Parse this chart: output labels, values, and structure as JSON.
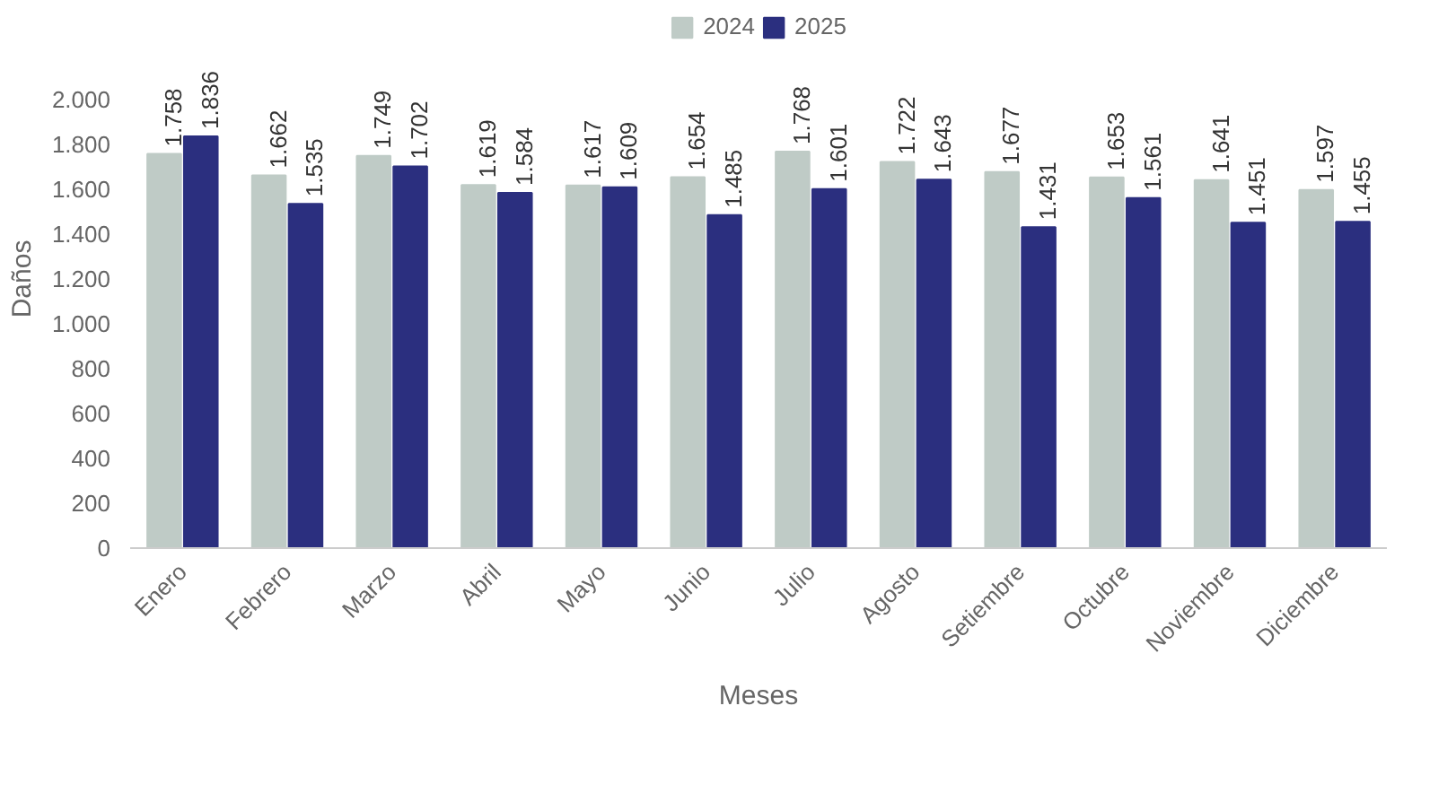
{
  "chart_data": {
    "type": "bar",
    "xlabel": "Meses",
    "ylabel": "Daños",
    "categories": [
      "Enero",
      "Febrero",
      "Marzo",
      "Abril",
      "Mayo",
      "Junio",
      "Julio",
      "Agosto",
      "Setiembre",
      "Octubre",
      "Noviembre",
      "Diciembre"
    ],
    "series": [
      {
        "name": "2024",
        "color": "#bfcbc6",
        "values": [
          1758,
          1662,
          1749,
          1619,
          1617,
          1654,
          1768,
          1722,
          1677,
          1653,
          1641,
          1597
        ],
        "value_labels": [
          "1.758",
          "1.662",
          "1.749",
          "1.619",
          "1.617",
          "1.654",
          "1.768",
          "1.722",
          "1.677",
          "1.653",
          "1.641",
          "1.597"
        ]
      },
      {
        "name": "2025",
        "color": "#2b2f7f",
        "values": [
          1836,
          1535,
          1702,
          1584,
          1609,
          1485,
          1601,
          1643,
          1431,
          1561,
          1451,
          1455
        ],
        "value_labels": [
          "1.836",
          "1.535",
          "1.702",
          "1.584",
          "1.609",
          "1.485",
          "1.601",
          "1.643",
          "1.431",
          "1.561",
          "1.451",
          "1.455"
        ]
      }
    ],
    "ylim": [
      0,
      2400
    ],
    "yticks": [
      {
        "value": 0,
        "label": "0"
      },
      {
        "value": 200,
        "label": "200"
      },
      {
        "value": 400,
        "label": "400"
      },
      {
        "value": 600,
        "label": "600"
      },
      {
        "value": 800,
        "label": "800"
      },
      {
        "value": 1000,
        "label": "1.000"
      },
      {
        "value": 1200,
        "label": "1.200"
      },
      {
        "value": 1400,
        "label": "1.400"
      },
      {
        "value": 1600,
        "label": "1.600"
      },
      {
        "value": 1800,
        "label": "1.800"
      },
      {
        "value": 2000,
        "label": "2.000"
      }
    ],
    "grid": false,
    "legend": "top"
  }
}
